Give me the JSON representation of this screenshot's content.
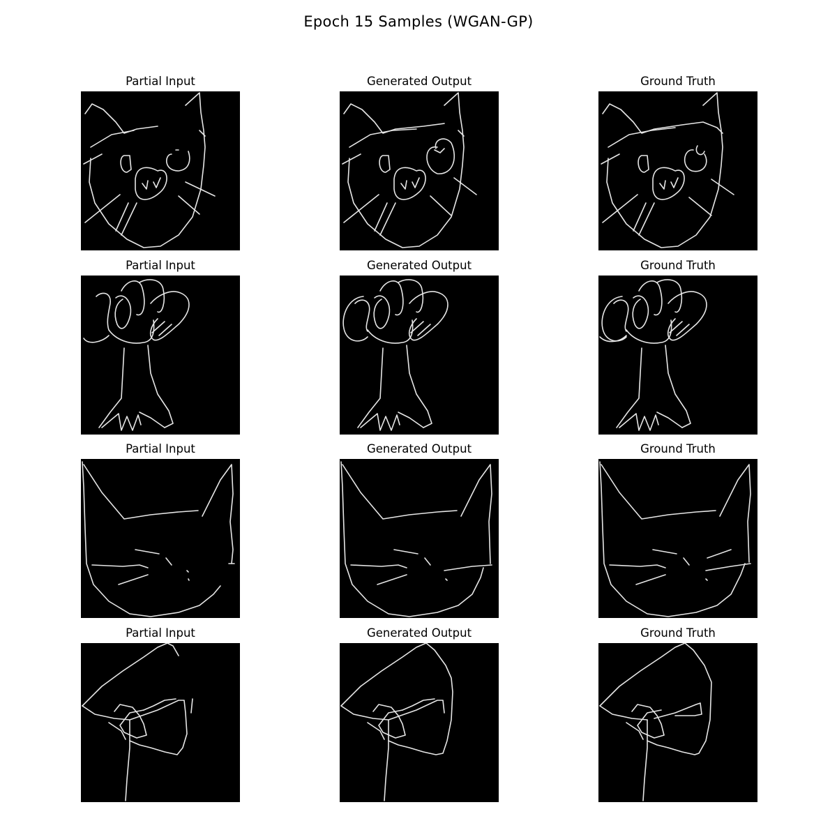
{
  "figure": {
    "title": "Epoch 15 Samples (WGAN-GP)"
  },
  "columns": [
    "Partial Input",
    "Generated Output",
    "Ground Truth"
  ],
  "rows": [
    {
      "subject": "cat-face-with-pig-nose"
    },
    {
      "subject": "tree-with-leafy-crown"
    },
    {
      "subject": "cat-head-outline"
    },
    {
      "subject": "abstract-sketch"
    }
  ],
  "colors": {
    "background": "#ffffff",
    "panel": "#000000",
    "stroke": "#e6e6e6"
  }
}
